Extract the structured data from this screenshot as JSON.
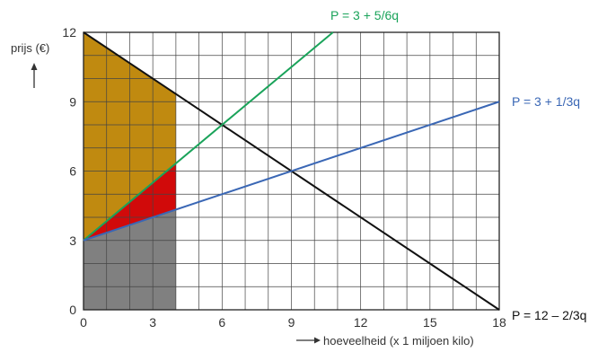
{
  "chart_data": {
    "type": "line",
    "title": "",
    "ylabel": "prijs (€)",
    "xlabel": "hoeveelheid (x 1 miljoen kilo)",
    "xlim": [
      0,
      18
    ],
    "ylim": [
      0,
      12
    ],
    "x_ticks": [
      0,
      3,
      6,
      9,
      12,
      15,
      18
    ],
    "y_ticks": [
      0,
      3,
      6,
      9,
      12
    ],
    "grid": true,
    "series": [
      {
        "name": "P = 12 – 2/3q",
        "color": "#111111",
        "x": [
          0,
          18
        ],
        "y": [
          12,
          0
        ]
      },
      {
        "name": "P = 3 + 5/6q",
        "color": "#1aa35a",
        "x": [
          0,
          10.8
        ],
        "y": [
          3,
          12
        ]
      },
      {
        "name": "P = 3 + 1/3q",
        "color": "#3a67b5",
        "x": [
          0,
          18
        ],
        "y": [
          3,
          9
        ]
      }
    ],
    "areas": [
      {
        "name": "gold",
        "color": "#c08a10",
        "points": [
          [
            0,
            12
          ],
          [
            4,
            9.33
          ],
          [
            4,
            6.33
          ],
          [
            0,
            3
          ]
        ]
      },
      {
        "name": "red",
        "color": "#d10a0a",
        "points": [
          [
            0,
            3
          ],
          [
            4,
            6.33
          ],
          [
            4,
            4.33
          ]
        ]
      },
      {
        "name": "grey",
        "color": "#808080",
        "points": [
          [
            0,
            0
          ],
          [
            0,
            3
          ],
          [
            4,
            4.33
          ],
          [
            4,
            0
          ]
        ]
      }
    ]
  }
}
